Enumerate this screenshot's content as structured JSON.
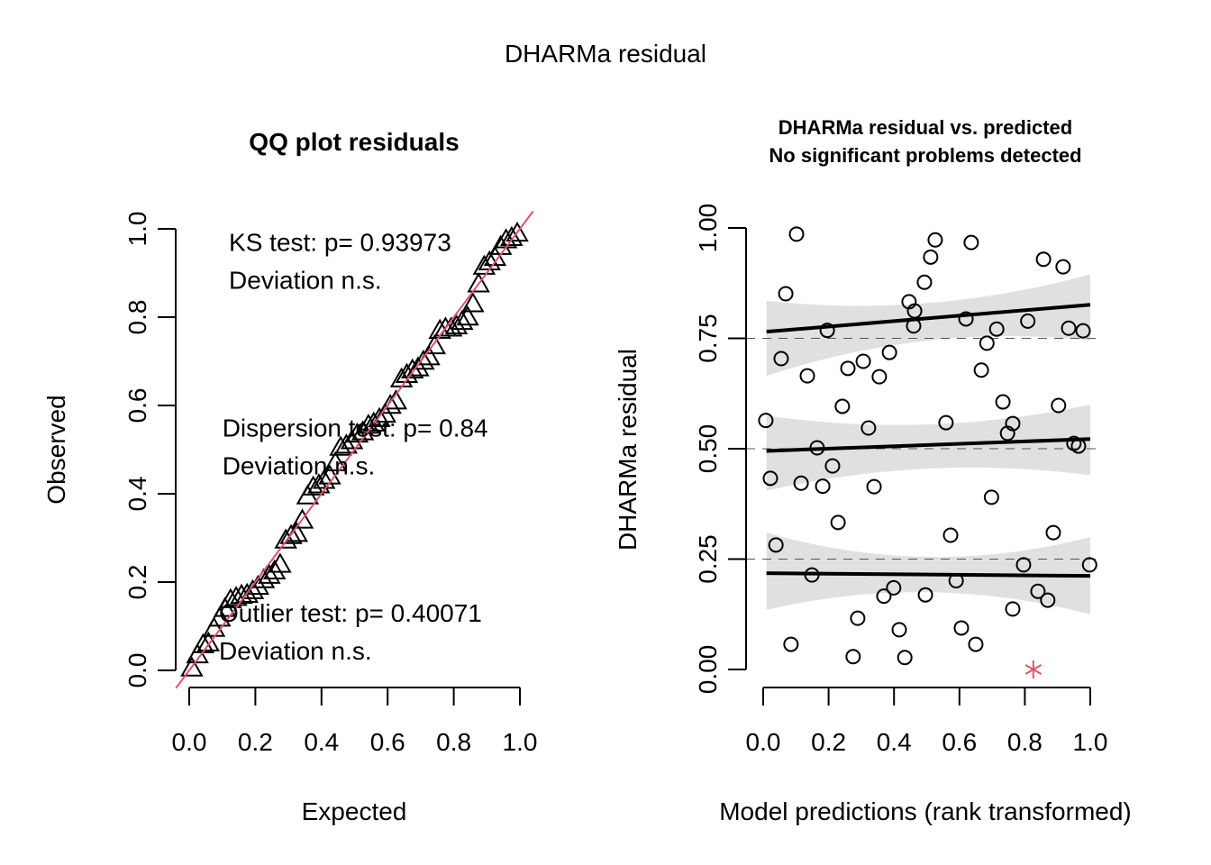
{
  "figure_title": "DHARMa residual",
  "chart_data": [
    {
      "type": "scatter",
      "panel": "left",
      "title": "QQ plot residuals",
      "xlabel": "Expected",
      "ylabel": "Observed",
      "xlim": [
        0,
        1
      ],
      "ylim": [
        0,
        1
      ],
      "xticks": [
        "0.0",
        "0.2",
        "0.4",
        "0.6",
        "0.8",
        "1.0"
      ],
      "yticks": [
        "0.0",
        "0.2",
        "0.4",
        "0.6",
        "0.8",
        "1.0"
      ],
      "xtick_values": [
        0,
        0.2,
        0.4,
        0.6,
        0.8,
        1.0
      ],
      "ytick_values": [
        0,
        0.2,
        0.4,
        0.6,
        0.8,
        1.0
      ],
      "marker": "triangle",
      "reference_line": {
        "slope": 1,
        "intercept": 0,
        "color": "#DF536B"
      },
      "annotations": [
        {
          "lines": [
            "KS test: p= 0.93973",
            "Deviation  n.s."
          ],
          "at": [
            0.12,
            0.95
          ]
        },
        {
          "lines": [
            "Dispersion test: p= 0.84",
            "Deviation  n.s."
          ],
          "at": [
            0.1,
            0.53
          ]
        },
        {
          "lines": [
            "Outlier test: p= 0.40071",
            "Deviation  n.s."
          ],
          "at": [
            0.09,
            0.11
          ]
        }
      ],
      "expected": [
        0.008,
        0.025,
        0.042,
        0.058,
        0.075,
        0.092,
        0.108,
        0.125,
        0.142,
        0.158,
        0.175,
        0.192,
        0.208,
        0.225,
        0.242,
        0.258,
        0.275,
        0.292,
        0.308,
        0.325,
        0.342,
        0.358,
        0.375,
        0.392,
        0.408,
        0.425,
        0.442,
        0.458,
        0.475,
        0.492,
        0.508,
        0.525,
        0.542,
        0.558,
        0.575,
        0.592,
        0.608,
        0.625,
        0.642,
        0.658,
        0.675,
        0.692,
        0.708,
        0.725,
        0.742,
        0.758,
        0.775,
        0.792,
        0.808,
        0.825,
        0.842,
        0.858,
        0.875,
        0.892,
        0.908,
        0.925,
        0.942,
        0.958,
        0.975,
        0.992
      ],
      "observed": [
        0.005,
        0.035,
        0.058,
        0.062,
        0.095,
        0.118,
        0.14,
        0.16,
        0.165,
        0.17,
        0.172,
        0.18,
        0.19,
        0.205,
        0.215,
        0.225,
        0.24,
        0.295,
        0.305,
        0.31,
        0.34,
        0.395,
        0.415,
        0.42,
        0.43,
        0.44,
        0.47,
        0.505,
        0.51,
        0.52,
        0.535,
        0.54,
        0.555,
        0.56,
        0.57,
        0.58,
        0.6,
        0.61,
        0.66,
        0.67,
        0.68,
        0.685,
        0.7,
        0.71,
        0.735,
        0.77,
        0.775,
        0.775,
        0.78,
        0.79,
        0.8,
        0.83,
        0.875,
        0.915,
        0.925,
        0.935,
        0.96,
        0.975,
        0.98,
        0.99
      ]
    },
    {
      "type": "scatter",
      "panel": "right",
      "title": "DHARMa residual vs. predicted",
      "subtitle": "No significant problems detected",
      "xlabel": "Model predictions (rank transformed)",
      "ylabel": "DHARMa residual",
      "xlim": [
        0,
        1
      ],
      "ylim": [
        0,
        1
      ],
      "xticks": [
        "0.0",
        "0.2",
        "0.4",
        "0.6",
        "0.8",
        "1.0"
      ],
      "yticks": [
        "0.00",
        "0.25",
        "0.50",
        "0.75",
        "1.00"
      ],
      "xtick_values": [
        0,
        0.2,
        0.4,
        0.6,
        0.8,
        1.0
      ],
      "ytick_values": [
        0,
        0.25,
        0.5,
        0.75,
        1.0
      ],
      "reference_lines": [
        0.25,
        0.5,
        0.75
      ],
      "quantile_fits": [
        {
          "quantile": 0.25,
          "y_start": 0.218,
          "y_end": 0.212,
          "band_lower": [
            0.135,
            0.175,
            0.125
          ],
          "band_upper": [
            0.31,
            0.255,
            0.3
          ]
        },
        {
          "quantile": 0.5,
          "y_start": 0.495,
          "y_end": 0.522,
          "band_lower": [
            0.405,
            0.455,
            0.44
          ],
          "band_upper": [
            0.575,
            0.555,
            0.6
          ]
        },
        {
          "quantile": 0.75,
          "y_start": 0.765,
          "y_end": 0.826,
          "band_lower": [
            0.665,
            0.745,
            0.745
          ],
          "band_upper": [
            0.835,
            0.83,
            0.895
          ]
        }
      ],
      "points": [
        {
          "x": 0.008,
          "y": 0.564
        },
        {
          "x": 0.022,
          "y": 0.433
        },
        {
          "x": 0.039,
          "y": 0.282
        },
        {
          "x": 0.055,
          "y": 0.704
        },
        {
          "x": 0.069,
          "y": 0.851
        },
        {
          "x": 0.085,
          "y": 0.057
        },
        {
          "x": 0.102,
          "y": 0.986
        },
        {
          "x": 0.116,
          "y": 0.422
        },
        {
          "x": 0.135,
          "y": 0.665
        },
        {
          "x": 0.149,
          "y": 0.214
        },
        {
          "x": 0.165,
          "y": 0.502
        },
        {
          "x": 0.182,
          "y": 0.415
        },
        {
          "x": 0.196,
          "y": 0.768
        },
        {
          "x": 0.212,
          "y": 0.461
        },
        {
          "x": 0.229,
          "y": 0.333
        },
        {
          "x": 0.242,
          "y": 0.596
        },
        {
          "x": 0.259,
          "y": 0.682
        },
        {
          "x": 0.275,
          "y": 0.029
        },
        {
          "x": 0.289,
          "y": 0.116
        },
        {
          "x": 0.306,
          "y": 0.698
        },
        {
          "x": 0.322,
          "y": 0.547
        },
        {
          "x": 0.339,
          "y": 0.414
        },
        {
          "x": 0.355,
          "y": 0.663
        },
        {
          "x": 0.369,
          "y": 0.166
        },
        {
          "x": 0.386,
          "y": 0.718
        },
        {
          "x": 0.399,
          "y": 0.185
        },
        {
          "x": 0.416,
          "y": 0.09
        },
        {
          "x": 0.433,
          "y": 0.027
        },
        {
          "x": 0.446,
          "y": 0.833
        },
        {
          "x": 0.46,
          "y": 0.778
        },
        {
          "x": 0.463,
          "y": 0.812
        },
        {
          "x": 0.493,
          "y": 0.877
        },
        {
          "x": 0.496,
          "y": 0.169
        },
        {
          "x": 0.512,
          "y": 0.934
        },
        {
          "x": 0.526,
          "y": 0.973
        },
        {
          "x": 0.559,
          "y": 0.559
        },
        {
          "x": 0.573,
          "y": 0.304
        },
        {
          "x": 0.59,
          "y": 0.201
        },
        {
          "x": 0.606,
          "y": 0.094
        },
        {
          "x": 0.62,
          "y": 0.794
        },
        {
          "x": 0.636,
          "y": 0.967
        },
        {
          "x": 0.65,
          "y": 0.057
        },
        {
          "x": 0.667,
          "y": 0.678
        },
        {
          "x": 0.684,
          "y": 0.739
        },
        {
          "x": 0.698,
          "y": 0.39
        },
        {
          "x": 0.714,
          "y": 0.771
        },
        {
          "x": 0.733,
          "y": 0.606
        },
        {
          "x": 0.747,
          "y": 0.535
        },
        {
          "x": 0.763,
          "y": 0.137
        },
        {
          "x": 0.763,
          "y": 0.557
        },
        {
          "x": 0.796,
          "y": 0.237
        },
        {
          "x": 0.809,
          "y": 0.789
        },
        {
          "x": 0.84,
          "y": 0.177
        },
        {
          "x": 0.857,
          "y": 0.929
        },
        {
          "x": 0.87,
          "y": 0.157
        },
        {
          "x": 0.887,
          "y": 0.31
        },
        {
          "x": 0.903,
          "y": 0.598
        },
        {
          "x": 0.917,
          "y": 0.912
        },
        {
          "x": 0.934,
          "y": 0.773
        },
        {
          "x": 0.95,
          "y": 0.512
        },
        {
          "x": 0.964,
          "y": 0.506
        },
        {
          "x": 0.978,
          "y": 0.767
        },
        {
          "x": 0.998,
          "y": 0.237
        }
      ],
      "outliers": [
        {
          "x": 0.826,
          "y": 0.0
        }
      ],
      "outlier_color": "#DF536B",
      "band_color": "#E0E0E0"
    }
  ]
}
